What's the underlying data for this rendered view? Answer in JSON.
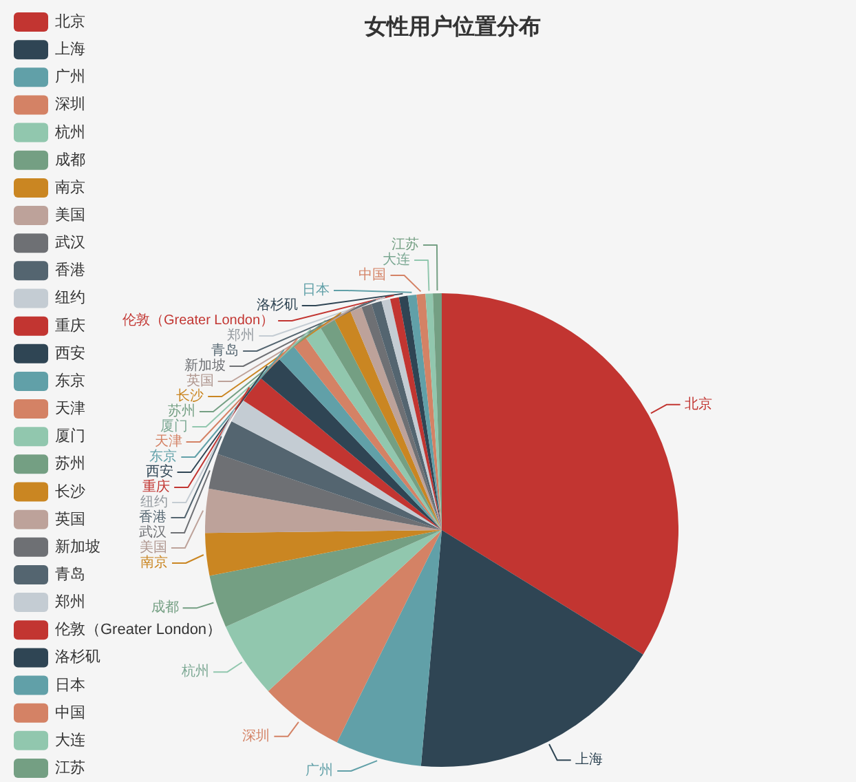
{
  "chart_data": {
    "type": "pie",
    "title": "女性用户位置分布",
    "categories": [
      "北京",
      "上海",
      "广州",
      "深圳",
      "杭州",
      "成都",
      "南京",
      "美国",
      "武汉",
      "香港",
      "纽约",
      "重庆",
      "西安",
      "东京",
      "天津",
      "厦门",
      "苏州",
      "长沙",
      "英国",
      "新加坡",
      "青岛",
      "郑州",
      "伦敦（Greater London）",
      "洛杉矶",
      "日本",
      "中国",
      "大连",
      "江苏"
    ],
    "values": [
      33.8,
      17.6,
      5.9,
      5.8,
      5.2,
      3.6,
      2.9,
      3.0,
      2.4,
      2.4,
      1.6,
      1.9,
      1.8,
      1.3,
      1.0,
      1.2,
      1.1,
      1.2,
      0.8,
      0.7,
      0.7,
      0.6,
      0.6,
      0.6,
      0.6,
      0.6,
      0.5,
      0.6
    ],
    "colors": [
      "#c23531",
      "#2f4554",
      "#61a0a8",
      "#d48265",
      "#91c7ae",
      "#749f83",
      "#ca8622",
      "#bda29a",
      "#6e7074",
      "#546570",
      "#c4ccd3",
      "#c23531",
      "#2f4554",
      "#61a0a8",
      "#d48265",
      "#91c7ae",
      "#749f83",
      "#ca8622",
      "#bda29a",
      "#6e7074",
      "#546570",
      "#c4ccd3",
      "#c23531",
      "#2f4554",
      "#61a0a8",
      "#d48265",
      "#91c7ae",
      "#749f83"
    ],
    "legend": "left"
  }
}
